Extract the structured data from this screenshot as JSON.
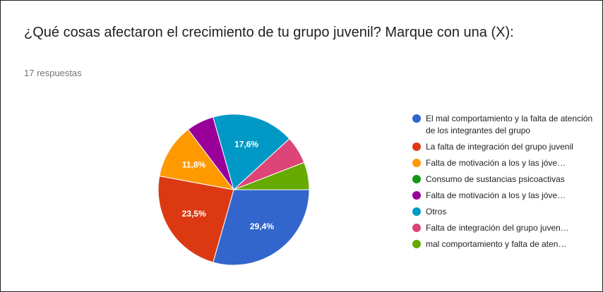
{
  "chart_data": {
    "type": "pie",
    "title": "¿Qué cosas afectaron el crecimiento de tu grupo juvenil? Marque con una (X):",
    "subtitle": "17 respuestas",
    "categories": [
      "El mal comportamiento y la falta de atención de los integrantes del grupo",
      "La falta de integración del grupo juvenil",
      "Falta de motivación a los y las jóve…",
      "Consumo de sustancias psicoactivas",
      "Falta de motivación a los y las jóve…",
      "Otros",
      "Falta de integración del grupo juven…",
      "mal comportamiento y falta de aten…"
    ],
    "values": [
      29.4,
      23.5,
      11.8,
      0,
      5.9,
      17.6,
      5.9,
      5.9
    ],
    "value_labels": [
      "29,4%",
      "23,5%",
      "11,8%",
      null,
      null,
      "17,6%",
      null,
      null
    ],
    "colors": [
      "#3366cc",
      "#dc3912",
      "#ff9900",
      "#109618",
      "#990099",
      "#0099c6",
      "#dd4477",
      "#66aa00"
    ]
  }
}
